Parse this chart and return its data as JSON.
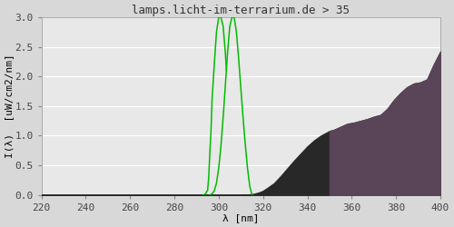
{
  "title": "lamps.licht-im-terrarium.de > 35",
  "xlabel": "λ [nm]",
  "ylabel": "I(λ)  [uW/cm2/nm]",
  "xlim": [
    220,
    400
  ],
  "ylim": [
    0,
    3.0
  ],
  "xticks": [
    220,
    240,
    260,
    280,
    300,
    320,
    340,
    360,
    380,
    400
  ],
  "yticks": [
    0.0,
    0.5,
    1.0,
    1.5,
    2.0,
    2.5,
    3.0
  ],
  "bg_color": "#d8d8d8",
  "plot_bg_color": "#e8e8e8",
  "title_fontsize": 9,
  "axis_fontsize": 8,
  "spectrum_black_x": [
    220,
    250,
    280,
    295,
    300,
    305,
    308,
    310,
    312,
    314,
    316,
    318,
    320,
    322,
    325,
    328,
    331,
    334,
    337,
    340,
    343,
    346,
    349,
    350,
    352,
    355,
    358,
    361,
    364,
    367,
    370,
    373,
    376,
    379,
    382,
    385,
    388,
    391,
    394,
    397,
    400
  ],
  "spectrum_black_y": [
    0.0,
    0.0,
    0.0,
    0.0,
    0.0,
    0.0,
    0.0,
    0.0,
    0.005,
    0.01,
    0.02,
    0.04,
    0.07,
    0.12,
    0.2,
    0.32,
    0.45,
    0.58,
    0.7,
    0.82,
    0.92,
    1.0,
    1.06,
    1.08,
    1.1,
    1.15,
    1.2,
    1.22,
    1.25,
    1.28,
    1.32,
    1.35,
    1.45,
    1.6,
    1.72,
    1.82,
    1.88,
    1.9,
    1.95,
    2.2,
    2.42
  ],
  "spectrum_purple_x": [
    350,
    352,
    355,
    358,
    361,
    364,
    367,
    370,
    373,
    376,
    379,
    382,
    385,
    388,
    391,
    394,
    397,
    400
  ],
  "spectrum_purple_y": [
    1.08,
    1.1,
    1.15,
    1.2,
    1.22,
    1.25,
    1.28,
    1.32,
    1.35,
    1.45,
    1.6,
    1.72,
    1.82,
    1.88,
    1.9,
    1.95,
    2.2,
    2.42
  ],
  "vitd3_left_x": [
    293.0,
    294.0,
    295.0,
    295.5,
    296.0,
    296.3,
    296.5,
    297.0,
    298.0,
    299.0,
    300.0,
    301.0,
    302.0,
    303.0,
    303.5
  ],
  "vitd3_left_y": [
    0.0,
    0.02,
    0.08,
    0.3,
    0.7,
    0.92,
    1.05,
    1.6,
    2.2,
    2.75,
    3.0,
    3.0,
    2.85,
    2.4,
    2.1
  ],
  "vitd3_right_x": [
    296.0,
    297.0,
    298.0,
    299.0,
    300.0,
    301.0,
    302.0,
    303.0,
    304.0,
    305.0,
    306.0,
    307.0,
    308.0,
    309.0,
    310.0,
    311.0,
    312.0,
    313.0,
    314.0,
    315.0
  ],
  "vitd3_right_y": [
    0.0,
    0.02,
    0.07,
    0.2,
    0.45,
    0.82,
    1.3,
    1.85,
    2.4,
    2.85,
    3.0,
    3.0,
    2.75,
    2.3,
    1.8,
    1.3,
    0.85,
    0.45,
    0.15,
    0.0
  ],
  "green_color": "#00bb00",
  "black_fill_color": "#282828",
  "purple_fill_color": "#5a4458"
}
